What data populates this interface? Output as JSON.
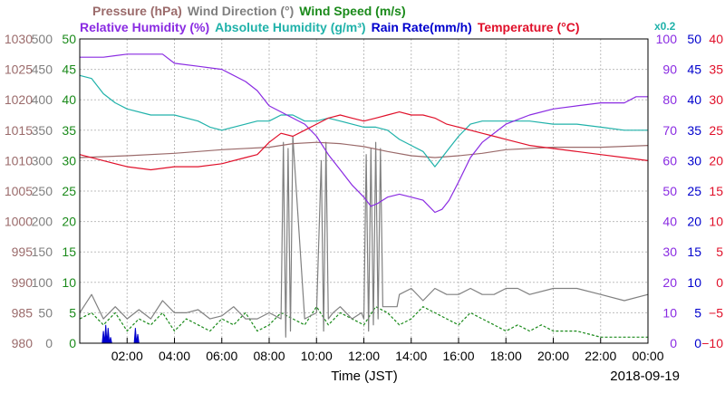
{
  "chart_data": {
    "type": "line",
    "title_rows": [
      [
        {
          "text": "Pressure (hPa)",
          "color": "#9b6b6b"
        },
        {
          "text": "Wind Direction (°)",
          "color": "#808080"
        },
        {
          "text": "Wind Speed (m/s)",
          "color": "#1a8a1a"
        }
      ],
      [
        {
          "text": "Relative Humidity (%)",
          "color": "#8a2be2"
        },
        {
          "text": "Absolute Humidity (g/m³)",
          "color": "#20b2aa"
        },
        {
          "text": "Rain Rate(mm/h)",
          "color": "#0000cd"
        },
        {
          "text": "Temperature (°C)",
          "color": "#e0102a"
        }
      ]
    ],
    "ah_scale_note": "x0.2",
    "xlabel": "Time (JST)",
    "date": "2018-09-19",
    "xlim": [
      0,
      24
    ],
    "x_ticks": [
      "02:00",
      "04:00",
      "06:00",
      "08:00",
      "10:00",
      "12:00",
      "14:00",
      "16:00",
      "18:00",
      "20:00",
      "22:00",
      "00:00"
    ],
    "axes": {
      "pressure": {
        "range": [
          980,
          1030
        ],
        "ticks": [
          "980",
          "985",
          "990",
          "995",
          "1000",
          "1005",
          "1010",
          "1015",
          "1020",
          "1025",
          "1030"
        ],
        "color": "#9b6b6b",
        "side": "left"
      },
      "wind_direction": {
        "range": [
          0,
          500
        ],
        "ticks": [
          "0",
          "50",
          "100",
          "150",
          "200",
          "250",
          "300",
          "350",
          "400",
          "450",
          "500"
        ],
        "color": "#808080",
        "side": "left"
      },
      "wind_speed": {
        "range": [
          0,
          50
        ],
        "ticks": [
          "0",
          "5",
          "10",
          "15",
          "20",
          "25",
          "30",
          "35",
          "40",
          "45",
          "50"
        ],
        "color": "#1a8a1a",
        "side": "left"
      },
      "humidity": {
        "range": [
          0,
          100
        ],
        "ticks": [
          "0",
          "10",
          "20",
          "30",
          "40",
          "50",
          "60",
          "70",
          "80",
          "90",
          "100"
        ],
        "color": "#8a2be2",
        "side": "right"
      },
      "rain_rate": {
        "range": [
          0,
          50
        ],
        "ticks": [
          "0",
          "5",
          "10",
          "15",
          "20",
          "25",
          "30",
          "35",
          "40",
          "45",
          "50"
        ],
        "color": "#0000cd",
        "side": "right"
      },
      "temperature": {
        "range": [
          -10,
          40
        ],
        "ticks": [
          "−10",
          "−5",
          "0",
          "5",
          "10",
          "15",
          "20",
          "25",
          "30",
          "35",
          "40"
        ],
        "color": "#e0102a",
        "side": "right"
      }
    },
    "series": [
      {
        "name": "Pressure (hPa)",
        "axis": "pressure",
        "color": "#9b6b6b",
        "x": [
          0,
          2,
          4,
          6,
          8,
          9,
          10,
          11,
          12,
          13,
          14,
          15,
          16,
          17,
          18,
          20,
          22,
          24
        ],
        "y": [
          1010.5,
          1010.8,
          1011.2,
          1011.8,
          1012.2,
          1012.8,
          1013,
          1012.8,
          1012.3,
          1011.5,
          1010.8,
          1010.5,
          1010.8,
          1011.2,
          1011.8,
          1012.2,
          1012.2,
          1012.5
        ]
      },
      {
        "name": "Relative Humidity (%)",
        "axis": "humidity",
        "color": "#8a2be2",
        "x": [
          0,
          1,
          2,
          3,
          3.5,
          4,
          5,
          6,
          7,
          7.5,
          8,
          8.5,
          9,
          9.5,
          10,
          10.5,
          11,
          11.5,
          12,
          12.3,
          12.6,
          13,
          13.5,
          14,
          14.5,
          15,
          15.3,
          15.6,
          16,
          16.5,
          17,
          18,
          19,
          20,
          21,
          22,
          23,
          23.5,
          24
        ],
        "y": [
          94,
          94,
          95,
          95,
          95,
          92,
          91,
          90,
          86,
          83,
          78,
          76,
          74,
          72,
          68,
          62,
          57,
          52,
          48,
          45,
          46,
          48,
          49,
          48,
          47,
          43,
          44,
          47,
          53,
          61,
          66,
          72,
          75,
          77,
          78,
          79,
          79,
          81,
          81
        ]
      },
      {
        "name": "Absolute Humidity (g/m³)",
        "axis": "humidity",
        "color": "#20b2aa",
        "x": [
          0,
          0.5,
          1,
          1.5,
          2,
          3,
          4,
          5,
          5.5,
          6,
          6.5,
          7,
          7.5,
          8,
          8.5,
          9,
          9.5,
          10,
          10.5,
          11,
          11.5,
          12,
          12.5,
          13,
          13.5,
          14,
          14.5,
          15,
          15.5,
          16,
          16.5,
          17,
          17.5,
          18,
          19,
          20,
          21,
          22,
          23,
          24
        ],
        "y": [
          88,
          87,
          82,
          79,
          77,
          75,
          75,
          73,
          71,
          70,
          71,
          72,
          73,
          73,
          75,
          75,
          73,
          73,
          74,
          73,
          72,
          71,
          71,
          70,
          67,
          65,
          63,
          58,
          63,
          68,
          72,
          73,
          73,
          73,
          73,
          72,
          72,
          71,
          70,
          70
        ]
      },
      {
        "name": "Temperature (°C)",
        "axis": "temperature",
        "color": "#e0102a",
        "x": [
          0,
          1,
          2,
          3,
          4,
          5,
          6,
          7,
          7.5,
          8,
          8.5,
          9,
          9.5,
          10,
          10.5,
          11,
          11.5,
          12,
          12.5,
          13,
          13.5,
          14,
          14.5,
          15,
          15.5,
          16,
          16.5,
          17,
          17.5,
          18,
          19,
          20,
          21,
          22,
          23,
          24
        ],
        "y": [
          21,
          20,
          19,
          18.5,
          19,
          19,
          19.5,
          20.5,
          21,
          23,
          24.5,
          24,
          25,
          26,
          27,
          27.5,
          27,
          26.5,
          27,
          27.5,
          28,
          27.5,
          27.5,
          27,
          26,
          25.5,
          25,
          24.5,
          24,
          23.5,
          22.5,
          22,
          21.5,
          21,
          20.5,
          20
        ]
      },
      {
        "name": "Wind Direction (°)",
        "axis": "wind_direction",
        "color": "#808080",
        "x": [
          0,
          0.5,
          1,
          1.5,
          2,
          2.5,
          3,
          3.5,
          4,
          4.5,
          5,
          5.5,
          6,
          6.5,
          7,
          7.5,
          8,
          8.5,
          8.6,
          8.7,
          8.8,
          8.9,
          9,
          9.5,
          10,
          10.2,
          10.3,
          10.4,
          10.5,
          10.7,
          11,
          11.5,
          11.9,
          12,
          12.1,
          12.2,
          12.3,
          12.4,
          12.5,
          12.6,
          12.7,
          12.8,
          13,
          13.4,
          13.5,
          14,
          14.5,
          15,
          15.5,
          16,
          16.5,
          17,
          17.5,
          18,
          18.5,
          19,
          20,
          21,
          22,
          23,
          24
        ],
        "y": [
          50,
          80,
          40,
          60,
          40,
          55,
          40,
          70,
          50,
          50,
          55,
          40,
          45,
          60,
          40,
          40,
          50,
          40,
          330,
          10,
          320,
          20,
          340,
          40,
          50,
          300,
          20,
          330,
          40,
          50,
          60,
          40,
          50,
          40,
          310,
          20,
          320,
          30,
          330,
          40,
          320,
          60,
          60,
          60,
          80,
          90,
          70,
          90,
          80,
          80,
          90,
          80,
          80,
          90,
          90,
          80,
          90,
          90,
          80,
          70,
          80
        ]
      },
      {
        "name": "Wind Speed (m/s)",
        "axis": "wind_speed",
        "color": "#1a8a1a",
        "x": [
          0,
          0.5,
          1,
          1.5,
          2,
          2.5,
          3,
          3.5,
          4,
          4.5,
          5,
          5.5,
          6,
          6.5,
          7,
          7.5,
          8,
          8.5,
          9,
          9.5,
          10,
          10.5,
          11,
          11.5,
          12,
          12.5,
          13,
          13.5,
          14,
          14.5,
          15,
          15.5,
          16,
          16.5,
          17,
          17.5,
          18,
          18.5,
          19,
          19.5,
          20,
          21,
          22,
          23,
          24
        ],
        "y": [
          4,
          5,
          3,
          5,
          2,
          4,
          3,
          5,
          2,
          4,
          3,
          2,
          4,
          3,
          5,
          2,
          3,
          5,
          4,
          3,
          6,
          3,
          5,
          4,
          3,
          6,
          5,
          3,
          4,
          6,
          5,
          4,
          3,
          5,
          4,
          3,
          2,
          3,
          2,
          3,
          2,
          2,
          1,
          1,
          1
        ]
      },
      {
        "name": "Rain Rate(mm/h)",
        "axis": "rain_rate",
        "color": "#0000cd",
        "x": [
          0,
          0.95,
          1,
          1.05,
          1.1,
          1.15,
          1.2,
          1.25,
          1.3,
          1.35,
          1.4,
          1.5,
          2.3,
          2.35,
          2.4,
          2.45,
          2.5,
          24
        ],
        "y": [
          0,
          0,
          2,
          0,
          3,
          0,
          2.5,
          0,
          1,
          0,
          0,
          0,
          0,
          2.5,
          0,
          1.5,
          0,
          0
        ]
      }
    ]
  }
}
